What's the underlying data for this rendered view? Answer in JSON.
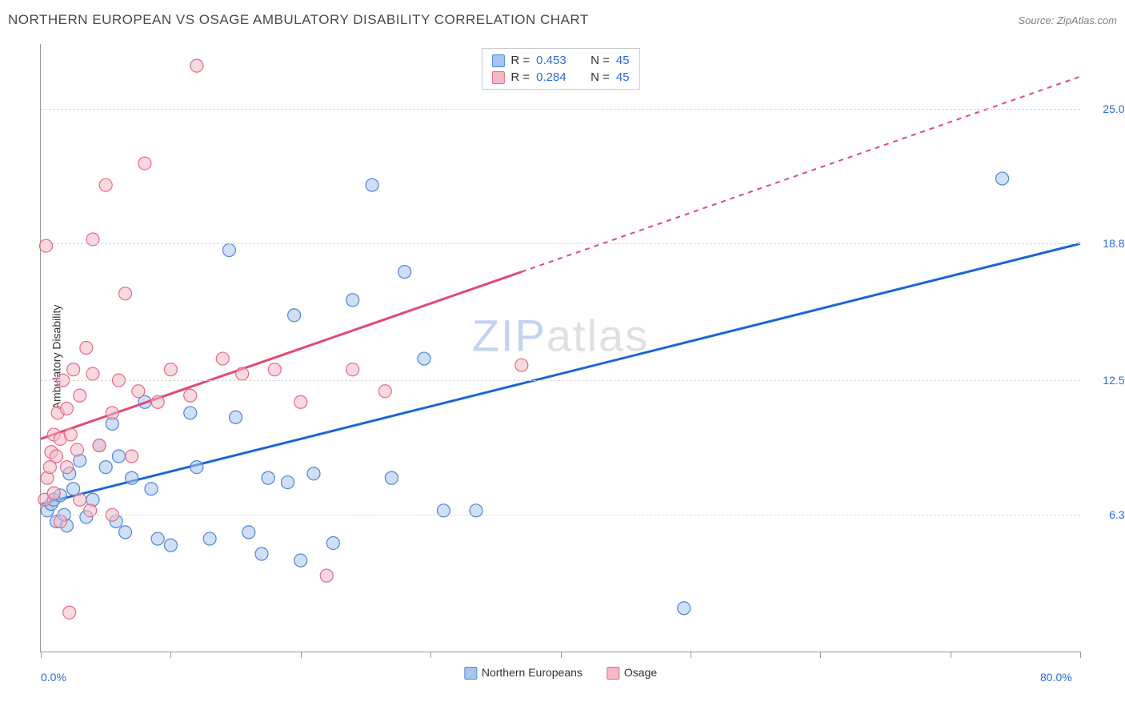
{
  "title": "NORTHERN EUROPEAN VS OSAGE AMBULATORY DISABILITY CORRELATION CHART",
  "source": "Source: ZipAtlas.com",
  "ylabel": "Ambulatory Disability",
  "watermark": {
    "part1": "ZIP",
    "part2": "atlas"
  },
  "legend_bottom": {
    "series1": {
      "label": "Northern Europeans",
      "fill": "#a7c4ed",
      "stroke": "#4b86d9"
    },
    "series2": {
      "label": "Osage",
      "fill": "#f3b9c6",
      "stroke": "#e56b88"
    }
  },
  "legend_top": {
    "rows": [
      {
        "swatch_fill": "#a7c4ed",
        "swatch_stroke": "#4b86d9",
        "r": "0.453",
        "n": "45"
      },
      {
        "swatch_fill": "#f3b9c6",
        "swatch_stroke": "#e56b88",
        "r": "0.284",
        "n": "45"
      }
    ],
    "r_prefix": "R =",
    "n_prefix": "N ="
  },
  "chart": {
    "type": "scatter",
    "xlim": [
      0,
      80
    ],
    "ylim": [
      0,
      28
    ],
    "x_tick_positions": [
      0,
      10,
      20,
      30,
      40,
      50,
      60,
      70,
      80
    ],
    "x_labels": [
      {
        "x": 0,
        "text": "0.0%"
      },
      {
        "x": 80,
        "text": "80.0%"
      }
    ],
    "y_gridlines": [
      6.3,
      12.5,
      18.8,
      25.0
    ],
    "y_labels": [
      {
        "y": 6.3,
        "text": "6.3%"
      },
      {
        "y": 12.5,
        "text": "12.5%"
      },
      {
        "y": 18.8,
        "text": "18.8%"
      },
      {
        "y": 25.0,
        "text": "25.0%"
      }
    ],
    "background_color": "#ffffff",
    "grid_color": "#d8d8d8",
    "axis_color": "#999999",
    "marker_radius": 8,
    "marker_opacity": 0.55,
    "series": [
      {
        "name": "northern_europeans",
        "fill": "#a7c4ed",
        "stroke": "#4b86d9",
        "points": [
          [
            0.5,
            6.5
          ],
          [
            0.8,
            6.8
          ],
          [
            1.0,
            7.0
          ],
          [
            1.2,
            6.0
          ],
          [
            1.5,
            7.2
          ],
          [
            2.0,
            5.8
          ],
          [
            2.2,
            8.2
          ],
          [
            2.5,
            7.5
          ],
          [
            3.0,
            8.8
          ],
          [
            3.5,
            6.2
          ],
          [
            4.0,
            7.0
          ],
          [
            4.5,
            9.5
          ],
          [
            5.0,
            8.5
          ],
          [
            5.5,
            10.5
          ],
          [
            6.0,
            9.0
          ],
          [
            6.5,
            5.5
          ],
          [
            7.0,
            8.0
          ],
          [
            8.0,
            11.5
          ],
          [
            8.5,
            7.5
          ],
          [
            9.0,
            5.2
          ],
          [
            10.0,
            4.9
          ],
          [
            11.5,
            11.0
          ],
          [
            12.0,
            8.5
          ],
          [
            13.0,
            5.2
          ],
          [
            14.5,
            18.5
          ],
          [
            15.0,
            10.8
          ],
          [
            16.0,
            5.5
          ],
          [
            17.0,
            4.5
          ],
          [
            17.5,
            8.0
          ],
          [
            19.0,
            7.8
          ],
          [
            19.5,
            15.5
          ],
          [
            20.0,
            4.2
          ],
          [
            21.0,
            8.2
          ],
          [
            22.5,
            5.0
          ],
          [
            24.0,
            16.2
          ],
          [
            25.5,
            21.5
          ],
          [
            27.0,
            8.0
          ],
          [
            28.0,
            17.5
          ],
          [
            29.5,
            13.5
          ],
          [
            31.0,
            6.5
          ],
          [
            33.5,
            6.5
          ],
          [
            49.5,
            2.0
          ],
          [
            74.0,
            21.8
          ],
          [
            1.8,
            6.3
          ],
          [
            5.8,
            6.0
          ]
        ],
        "trend": {
          "x1": 0,
          "y1": 6.8,
          "x2": 80,
          "y2": 18.8,
          "color": "#1e66d0",
          "width": 3
        }
      },
      {
        "name": "osage",
        "fill": "#f3b9c6",
        "stroke": "#e56b88",
        "points": [
          [
            0.3,
            7.0
          ],
          [
            0.5,
            8.0
          ],
          [
            0.7,
            8.5
          ],
          [
            0.8,
            9.2
          ],
          [
            1.0,
            7.3
          ],
          [
            1.0,
            10.0
          ],
          [
            1.2,
            9.0
          ],
          [
            1.3,
            11.0
          ],
          [
            1.5,
            9.8
          ],
          [
            1.7,
            12.5
          ],
          [
            2.0,
            8.5
          ],
          [
            2.0,
            11.2
          ],
          [
            2.3,
            10.0
          ],
          [
            2.5,
            13.0
          ],
          [
            2.8,
            9.3
          ],
          [
            3.0,
            11.8
          ],
          [
            3.0,
            7.0
          ],
          [
            3.5,
            14.0
          ],
          [
            3.8,
            6.5
          ],
          [
            4.0,
            12.8
          ],
          [
            4.0,
            19.0
          ],
          [
            4.5,
            9.5
          ],
          [
            5.0,
            21.5
          ],
          [
            5.5,
            11.0
          ],
          [
            6.0,
            12.5
          ],
          [
            6.5,
            16.5
          ],
          [
            7.0,
            9.0
          ],
          [
            7.5,
            12.0
          ],
          [
            8.0,
            22.5
          ],
          [
            9.0,
            11.5
          ],
          [
            10.0,
            13.0
          ],
          [
            11.5,
            11.8
          ],
          [
            12.0,
            27.0
          ],
          [
            14.0,
            13.5
          ],
          [
            15.5,
            12.8
          ],
          [
            18.0,
            13.0
          ],
          [
            20.0,
            11.5
          ],
          [
            22.0,
            3.5
          ],
          [
            24.0,
            13.0
          ],
          [
            26.5,
            12.0
          ],
          [
            37.0,
            13.2
          ],
          [
            1.5,
            6.0
          ],
          [
            2.2,
            1.8
          ],
          [
            0.4,
            18.7
          ],
          [
            5.5,
            6.3
          ]
        ],
        "trend": {
          "x1": 0,
          "y1": 9.8,
          "x2": 37,
          "y2": 17.5,
          "color": "#e04b72",
          "width": 3,
          "extend_dashed_to_x": 80,
          "extend_dashed_to_y": 26.5
        }
      }
    ]
  }
}
